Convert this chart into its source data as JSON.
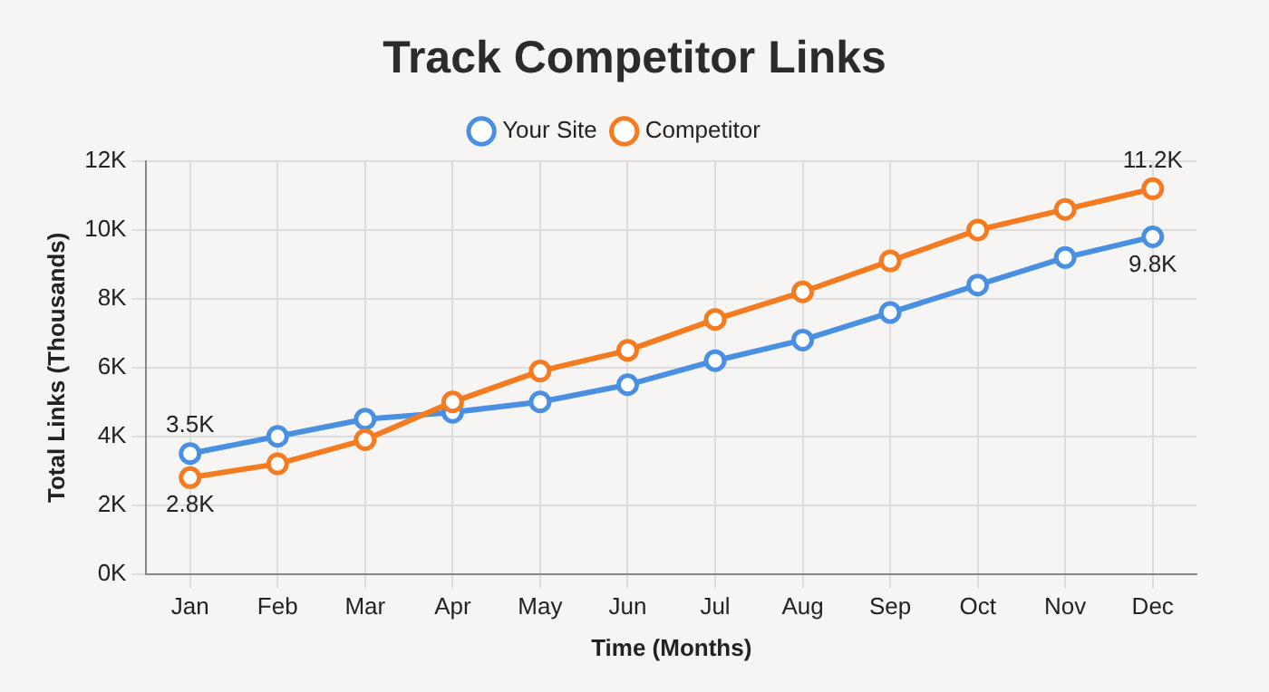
{
  "chart_data": {
    "type": "line",
    "title": "Track Competitor Links",
    "xlabel": "Time (Months)",
    "ylabel": "Total Links (Thousands)",
    "categories": [
      "Jan",
      "Feb",
      "Mar",
      "Apr",
      "May",
      "Jun",
      "Jul",
      "Aug",
      "Sep",
      "Oct",
      "Nov",
      "Dec"
    ],
    "series": [
      {
        "name": "Your Site",
        "color": "#4a90e2",
        "values": [
          3.5,
          4.0,
          4.5,
          4.7,
          5.0,
          5.5,
          6.2,
          6.8,
          7.6,
          8.4,
          9.2,
          9.8
        ],
        "value_labels": [
          "3.5K",
          null,
          null,
          null,
          null,
          null,
          null,
          null,
          null,
          null,
          null,
          "9.8K"
        ]
      },
      {
        "name": "Competitor",
        "color": "#f47b20",
        "values": [
          2.8,
          3.2,
          3.9,
          5.0,
          5.9,
          6.5,
          7.4,
          8.2,
          9.1,
          10.0,
          10.6,
          11.2
        ],
        "value_labels": [
          "2.8K",
          null,
          null,
          null,
          null,
          null,
          null,
          null,
          null,
          null,
          null,
          "11.2K"
        ]
      }
    ],
    "ylim": [
      0,
      12
    ],
    "yticks": [
      {
        "value": 0,
        "label": "0K"
      },
      {
        "value": 2,
        "label": "2K"
      },
      {
        "value": 4,
        "label": "4K"
      },
      {
        "value": 6,
        "label": "6K"
      },
      {
        "value": 8,
        "label": "8K"
      },
      {
        "value": 10,
        "label": "10K"
      },
      {
        "value": 12,
        "label": "12K"
      }
    ],
    "grid": true,
    "legend": "top",
    "marker": "circle",
    "line_style": "solid"
  }
}
